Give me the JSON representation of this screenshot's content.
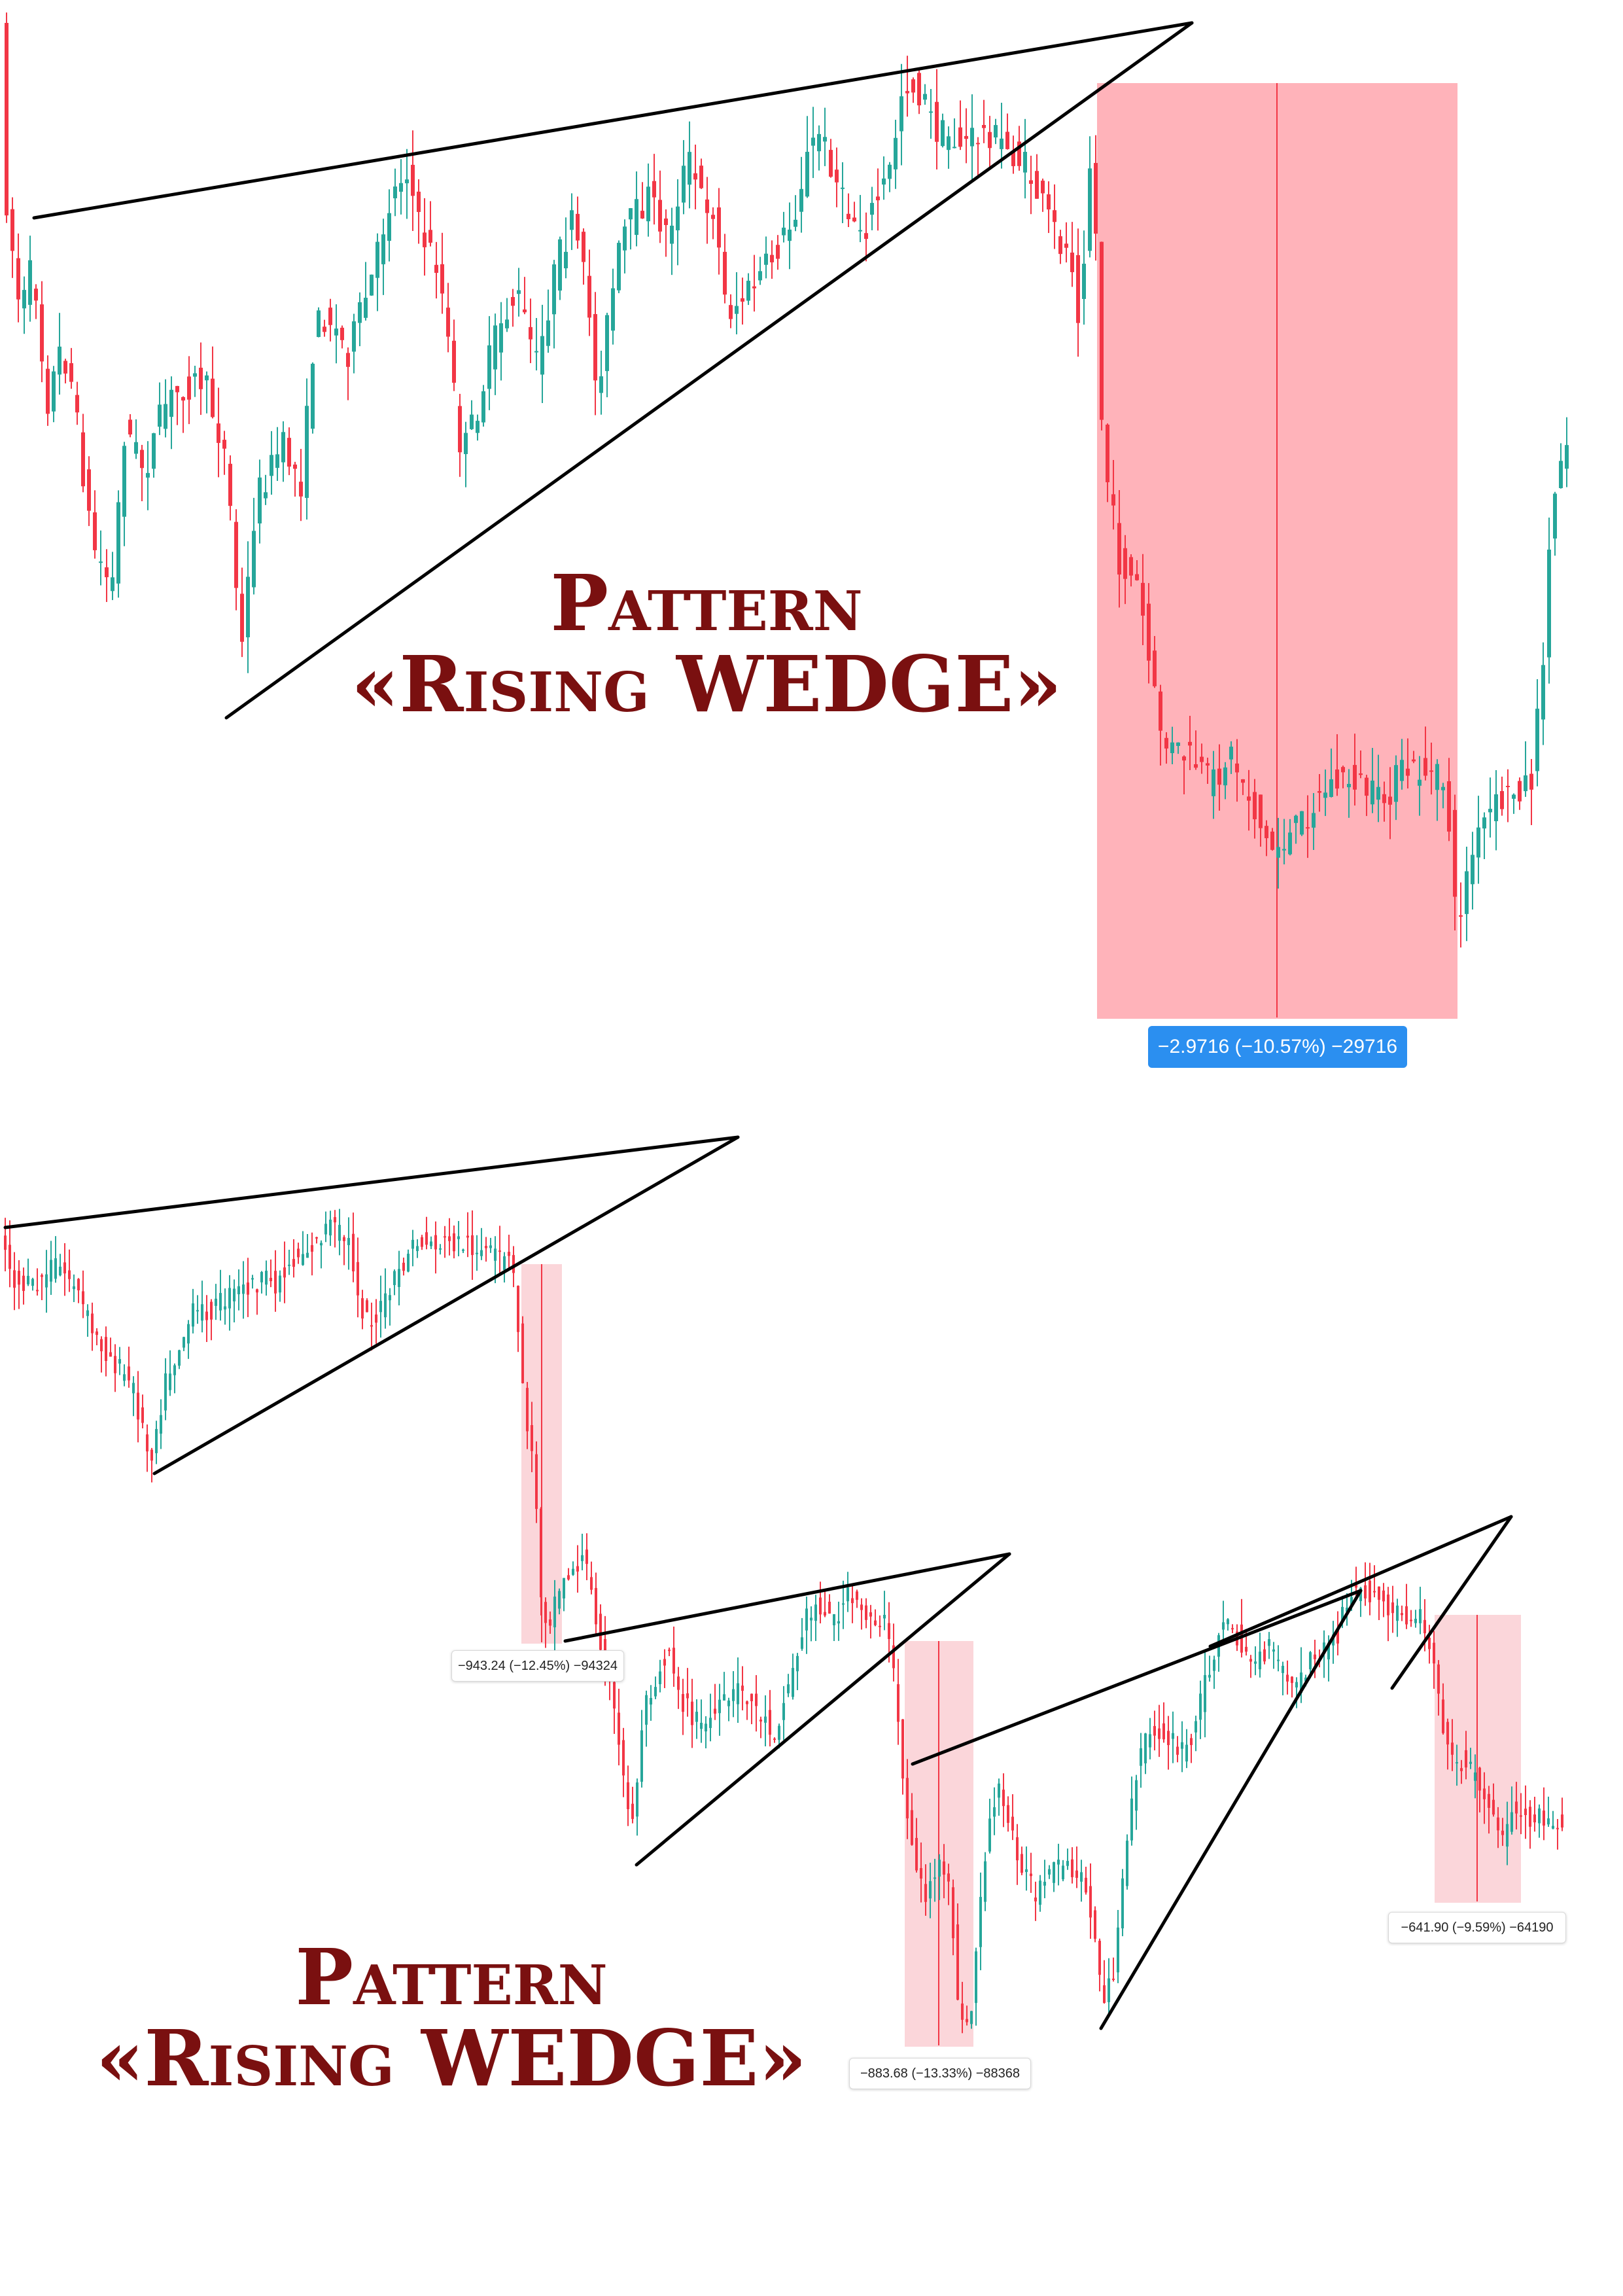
{
  "colors": {
    "up_candle": "#26a69a",
    "down_candle": "#f23645",
    "trendline": "#000000",
    "range_fill_strong": "#ffb3ba",
    "range_fill_light": "#fbd6da",
    "title": "#7a1010",
    "badge_blue": "#2b8ff0"
  },
  "chart_data": [
    {
      "type": "candlestick",
      "pattern": "Rising Wedge",
      "title_line1": "Pattern",
      "title_line2": "«Rising WEDGE»",
      "measure_label": "−2.9716 (−10.57%) −29716",
      "range": {
        "change": -2.9716,
        "change_percent": -10.57,
        "ticks": -29716
      },
      "grid": false,
      "legend": "none"
    },
    {
      "type": "candlestick",
      "pattern": "Rising Wedge",
      "title_line1": "Pattern",
      "title_line2": "«Rising WEDGE»",
      "measure_labels": [
        "−943.24 (−12.45%) −94324",
        "−883.68 (−13.33%) −88368",
        "−641.90 (−9.59%) −64190"
      ],
      "ranges": [
        {
          "change": -943.24,
          "change_percent": -12.45,
          "ticks": -94324
        },
        {
          "change": -883.68,
          "change_percent": -13.33,
          "ticks": -88368
        },
        {
          "change": -641.9,
          "change_percent": -9.59,
          "ticks": -64190
        }
      ],
      "grid": false,
      "legend": "none"
    }
  ]
}
